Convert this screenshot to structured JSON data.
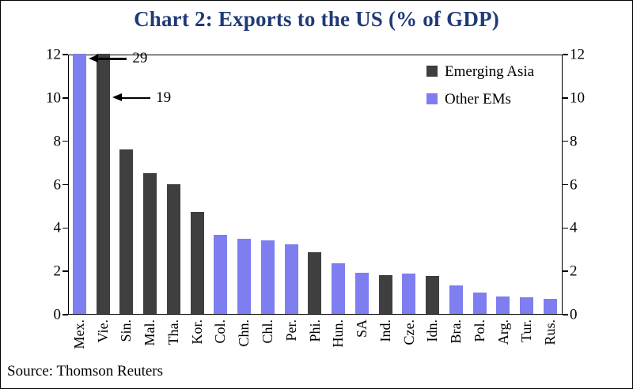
{
  "title": "Chart 2: Exports to the US (% of GDP)",
  "source": "Source: Thomson Reuters",
  "colors": {
    "title": "#203a78",
    "emerging_asia": "#3f3f3f",
    "other_ems": "#7e7ef0",
    "axis": "#000000"
  },
  "chart_data": {
    "type": "bar",
    "title": "Chart 2: Exports to the US (% of GDP)",
    "ylim": [
      0,
      12
    ],
    "yticks": [
      0,
      2,
      4,
      6,
      8,
      10,
      12
    ],
    "grid": false,
    "legend_position": "top-right-inside",
    "legend": [
      {
        "label": "Emerging Asia",
        "group": "asia"
      },
      {
        "label": "Other EMs",
        "group": "other"
      }
    ],
    "categories": [
      "Mex.",
      "Vie.",
      "Sin.",
      "Mal.",
      "Tha.",
      "Kor.",
      "Col.",
      "Chn.",
      "Chl.",
      "Per.",
      "Phi.",
      "Hun.",
      "SA",
      "Ind.",
      "Cze.",
      "Idn.",
      "Bra.",
      "Pol.",
      "Arg.",
      "Tur.",
      "Rus."
    ],
    "values": [
      29,
      19,
      7.6,
      6.5,
      6.0,
      4.7,
      3.65,
      3.45,
      3.4,
      3.2,
      2.85,
      2.35,
      1.9,
      1.8,
      1.85,
      1.75,
      1.3,
      1.0,
      0.8,
      0.75,
      0.7
    ],
    "groups": [
      "other",
      "asia",
      "asia",
      "asia",
      "asia",
      "asia",
      "other",
      "other",
      "other",
      "other",
      "asia",
      "other",
      "other",
      "asia",
      "other",
      "asia",
      "other",
      "other",
      "other",
      "other",
      "other"
    ],
    "annotations": [
      {
        "text": "29",
        "category": "Mex.",
        "arrow_y": 11.8
      },
      {
        "text": "19",
        "category": "Vie.",
        "arrow_y": 10
      }
    ]
  }
}
